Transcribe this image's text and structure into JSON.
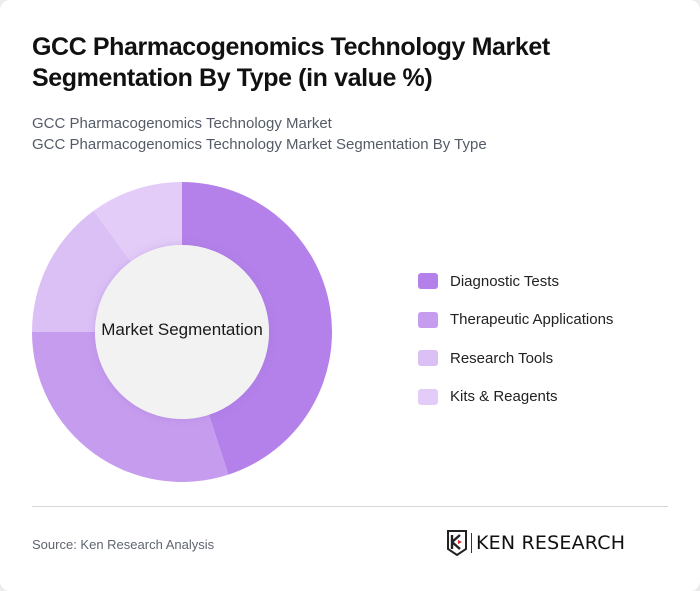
{
  "header": {
    "title": "GCC Pharmacogenomics Technology Market Segmentation By Type (in value %)",
    "subtitle_line1": "GCC Pharmacogenomics Technology Market",
    "subtitle_line2": "GCC Pharmacogenomics Technology Market Segmentation By Type"
  },
  "chart": {
    "center_label": "Market Segmentation"
  },
  "legend": {
    "items": [
      {
        "label": "Diagnostic Tests",
        "color": "#b381e9"
      },
      {
        "label": "Therapeutic Applications",
        "color": "#c69cee"
      },
      {
        "label": "Research Tools",
        "color": "#dbc0f5"
      },
      {
        "label": "Kits & Reagents",
        "color": "#e3ccf7"
      }
    ]
  },
  "footer": {
    "source": "Source: Ken Research Analysis",
    "logo_text": "KEN RESEARCH"
  },
  "chart_data": {
    "type": "pie",
    "subtype": "donut",
    "title": "GCC Pharmacogenomics Technology Market Segmentation By Type (in value %)",
    "center_label": "Market Segmentation",
    "categories": [
      "Diagnostic Tests",
      "Therapeutic Applications",
      "Research Tools",
      "Kits & Reagents"
    ],
    "values": [
      45,
      30,
      15,
      10
    ],
    "colors": [
      "#b381e9",
      "#c69cee",
      "#dbc0f5",
      "#e3ccf7"
    ],
    "legend_position": "right"
  }
}
